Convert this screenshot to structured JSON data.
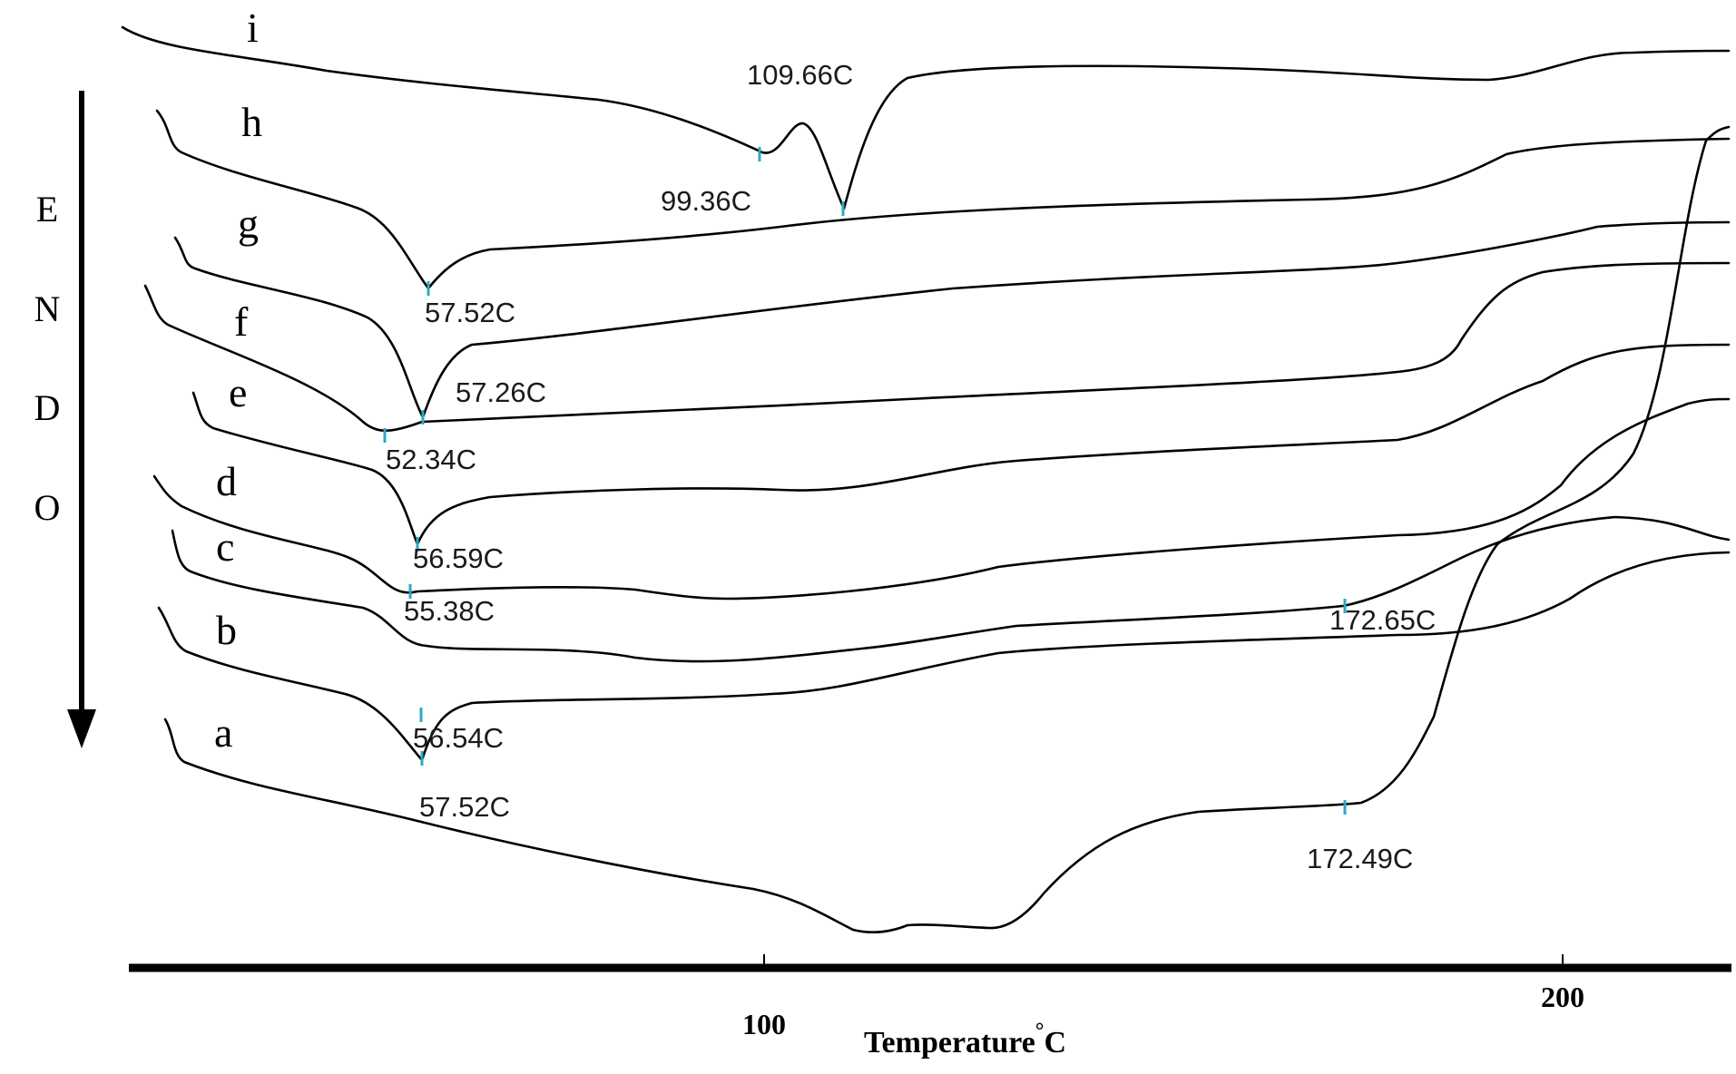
{
  "chart_data": {
    "type": "line",
    "title": "",
    "xlabel": "Temperature",
    "xlabel_degree": "°",
    "xlabel_unit": "C",
    "ylabel_letters": [
      "E",
      "N",
      "D",
      "O"
    ],
    "xlim": [
      20,
      220
    ],
    "x_ticks": [
      100,
      200
    ],
    "x_tick_labels": [
      "100",
      "200"
    ],
    "series": [
      {
        "name": "i",
        "peaks": [
          {
            "temperature": 99.36,
            "label": "99.36C"
          },
          {
            "temperature": 109.66,
            "label": "109.66C"
          }
        ]
      },
      {
        "name": "h",
        "peaks": [
          {
            "temperature": 57.52,
            "label": "57.52C"
          }
        ]
      },
      {
        "name": "g",
        "peaks": [
          {
            "temperature": 57.26,
            "label": "57.26C"
          }
        ]
      },
      {
        "name": "f",
        "peaks": [
          {
            "temperature": 52.34,
            "label": "52.34C"
          }
        ]
      },
      {
        "name": "e",
        "peaks": [
          {
            "temperature": 56.59,
            "label": "56.59C"
          }
        ]
      },
      {
        "name": "d",
        "peaks": [
          {
            "temperature": 55.38,
            "label": "55.38C"
          }
        ]
      },
      {
        "name": "c",
        "peaks": [
          {
            "temperature": 56.54,
            "label": "56.54C"
          },
          {
            "temperature": 172.65,
            "label": "172.65C"
          }
        ]
      },
      {
        "name": "b",
        "peaks": [
          {
            "temperature": 57.52,
            "label": "57.52C"
          }
        ]
      },
      {
        "name": "a",
        "peaks": [
          {
            "temperature": 172.49,
            "label": "172.49C"
          }
        ]
      }
    ]
  }
}
